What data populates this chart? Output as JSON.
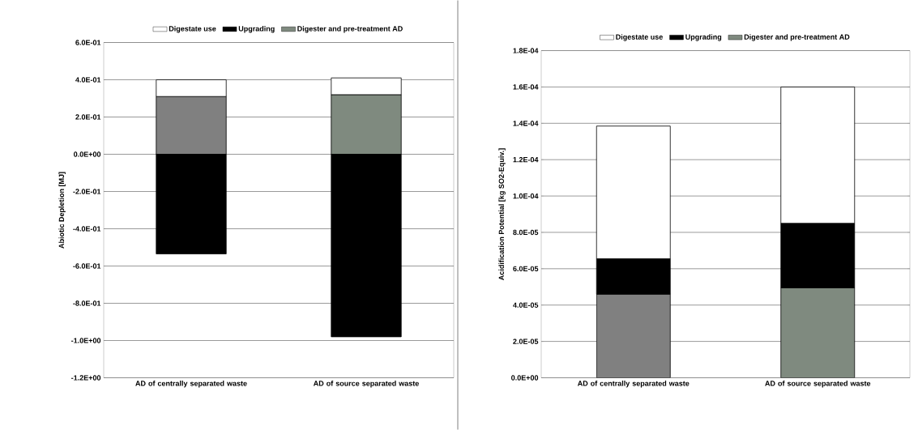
{
  "chart_data": [
    {
      "type": "bar",
      "stacked": true,
      "ylabel": "Abiotic Depletion [MJ]",
      "categories": [
        "AD of centrally separated waste",
        "AD of source separated waste"
      ],
      "ylim": [
        -1.2,
        0.6
      ],
      "yticks": [
        {
          "value": -1.2,
          "label": "-1.2E+00"
        },
        {
          "value": -1.0,
          "label": "-1.0E+00"
        },
        {
          "value": -0.8,
          "label": "-8.0E-01"
        },
        {
          "value": -0.6,
          "label": "-6.0E-01"
        },
        {
          "value": -0.4,
          "label": "-4.0E-01"
        },
        {
          "value": -0.2,
          "label": "-2.0E-01"
        },
        {
          "value": 0,
          "label": "0.0E+00"
        },
        {
          "value": 0.2,
          "label": "2.0E-01"
        },
        {
          "value": 0.4,
          "label": "4.0E-01"
        },
        {
          "value": 0.6,
          "label": "6.0E-01"
        }
      ],
      "grid": "y",
      "legend": "top",
      "series": [
        {
          "name": "Digester and pre-treatment AD",
          "color": "#7f8a7f",
          "colors": [
            "#808080",
            "#7f8a7f"
          ],
          "values": [
            0.31,
            0.32
          ]
        },
        {
          "name": "Upgrading",
          "color": "#000000",
          "values": [
            -0.535,
            -0.98
          ]
        },
        {
          "name": "Digestate use",
          "color": "#ffffff",
          "values": [
            0.09,
            0.09
          ]
        }
      ]
    },
    {
      "type": "bar",
      "stacked": true,
      "ylabel": "Acidification Potential [kg SO2-Equiv.]",
      "categories": [
        "AD of centrally separated waste",
        "AD of source separated waste"
      ],
      "ylim": [
        0,
        0.00018
      ],
      "yticks": [
        {
          "value": 0,
          "label": "0.0E+00"
        },
        {
          "value": 2e-05,
          "label": "2.0E-05"
        },
        {
          "value": 4e-05,
          "label": "4.0E-05"
        },
        {
          "value": 6e-05,
          "label": "6.0E-05"
        },
        {
          "value": 8e-05,
          "label": "8.0E-05"
        },
        {
          "value": 0.0001,
          "label": "1.0E-04"
        },
        {
          "value": 0.00012,
          "label": "1.2E-04"
        },
        {
          "value": 0.00014,
          "label": "1.4E-04"
        },
        {
          "value": 0.00016,
          "label": "1.6E-04"
        },
        {
          "value": 0.00018,
          "label": "1.8E-04"
        }
      ],
      "grid": "y",
      "legend": "top",
      "series": [
        {
          "name": "Digester and pre-treatment AD",
          "color": "#7f8a7f",
          "colors": [
            "#808080",
            "#7f8a7f"
          ],
          "values": [
            4.6e-05,
            4.95e-05
          ]
        },
        {
          "name": "Upgrading",
          "color": "#000000",
          "values": [
            1.95e-05,
            3.55e-05
          ]
        },
        {
          "name": "Digestate use",
          "color": "#ffffff",
          "values": [
            7.3e-05,
            7.5e-05
          ]
        }
      ]
    }
  ]
}
